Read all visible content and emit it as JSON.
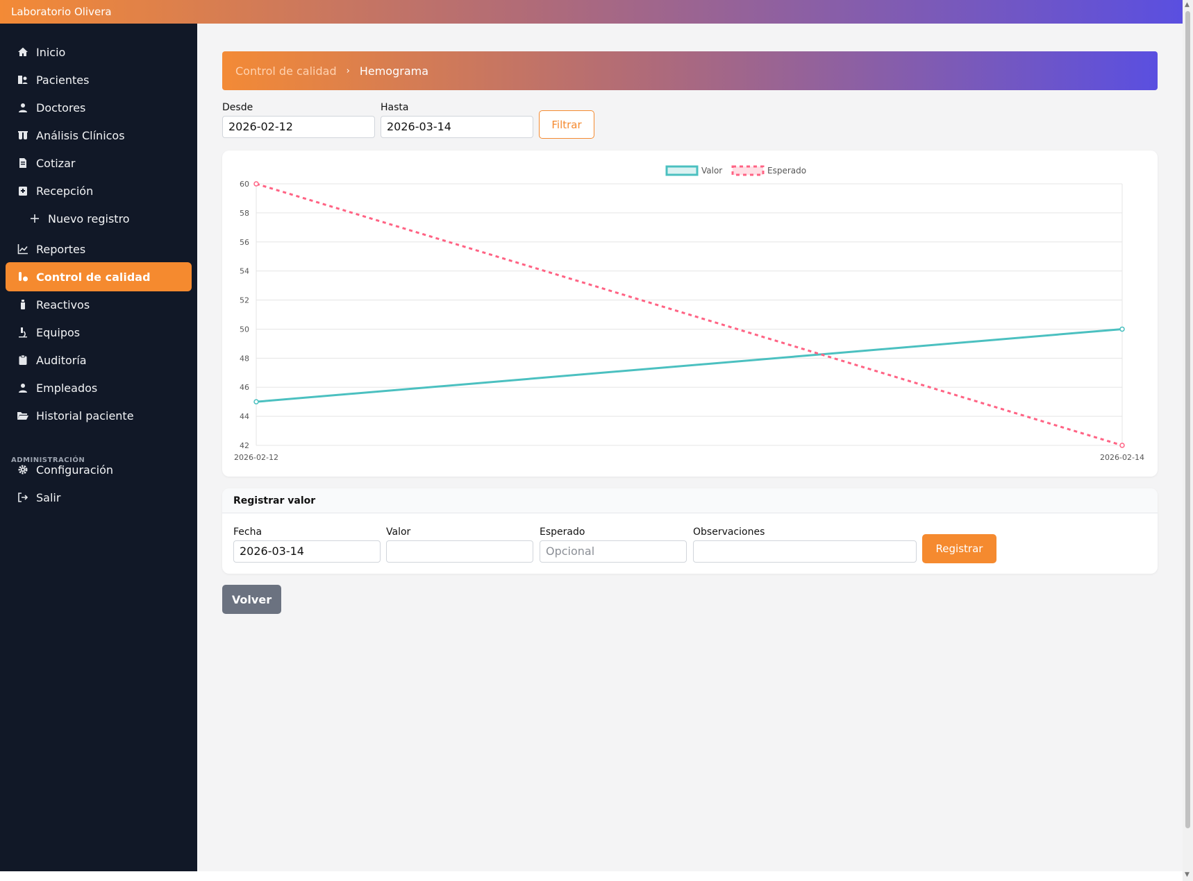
{
  "app": {
    "title": "Laboratorio Olivera"
  },
  "sidebar": {
    "items": [
      {
        "label": "Inicio",
        "icon": "home-icon"
      },
      {
        "label": "Pacientes",
        "icon": "patients-icon"
      },
      {
        "label": "Doctores",
        "icon": "doctor-icon"
      },
      {
        "label": "Análisis Clínicos",
        "icon": "flask-icon"
      },
      {
        "label": "Cotizar",
        "icon": "invoice-icon"
      },
      {
        "label": "Recepción",
        "icon": "reception-icon"
      },
      {
        "label": "Nuevo registro",
        "icon": "plus-icon"
      },
      {
        "label": "Reportes",
        "icon": "chart-line-icon"
      },
      {
        "label": "Control de calidad",
        "icon": "vial-icon",
        "active": true
      },
      {
        "label": "Reactivos",
        "icon": "bottle-icon"
      },
      {
        "label": "Equipos",
        "icon": "microscope-icon"
      },
      {
        "label": "Auditoría",
        "icon": "clipboard-icon"
      },
      {
        "label": "Empleados",
        "icon": "user-icon"
      },
      {
        "label": "Historial paciente",
        "icon": "folder-open-icon"
      }
    ],
    "section_admin": "ADMINISTRACIÓN",
    "admin_items": [
      {
        "label": "Configuración",
        "icon": "gear-icon"
      },
      {
        "label": "Salir",
        "icon": "sign-out-icon"
      }
    ]
  },
  "breadcrumb": {
    "parent": "Control de calidad",
    "separator": "›",
    "current": "Hemograma"
  },
  "filter": {
    "desde_label": "Desde",
    "desde_value": "2026-02-12",
    "hasta_label": "Hasta",
    "hasta_value": "2026-03-14",
    "button": "Filtrar"
  },
  "chart_data": {
    "type": "line",
    "x": [
      "2026-02-12",
      "2026-02-14"
    ],
    "series": [
      {
        "name": "Valor",
        "values": [
          45,
          50
        ],
        "color": "#4bc0c0",
        "dashed": false
      },
      {
        "name": "Esperado",
        "values": [
          60,
          42
        ],
        "color": "#ff6384",
        "dashed": true
      }
    ],
    "ylim": [
      42,
      60
    ],
    "yticks": [
      "60",
      "58",
      "56",
      "54",
      "52",
      "50",
      "48",
      "46",
      "44",
      "42"
    ],
    "grid": true,
    "legend": "top-center"
  },
  "form": {
    "title": "Registrar valor",
    "fecha_label": "Fecha",
    "fecha_value": "2026-03-14",
    "valor_label": "Valor",
    "valor_value": "",
    "esperado_label": "Esperado",
    "esperado_placeholder": "Opcional",
    "obs_label": "Observaciones",
    "obs_value": "",
    "submit": "Registrar"
  },
  "back_button": "Volver",
  "colors": {
    "accent": "#f58a2f",
    "sidebar": "#111827"
  }
}
